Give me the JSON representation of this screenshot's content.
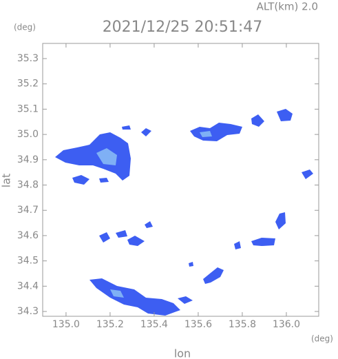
{
  "chart_data": {
    "type": "radar-map",
    "title": "2021/12/25 20:51:47",
    "altitude_label": "ALT(km) 2.0",
    "y_unit": "(deg)",
    "x_unit": "(deg)",
    "xlabel": "lon",
    "ylabel": "lat",
    "xlim": [
      134.894,
      136.147
    ],
    "ylim": [
      34.281,
      35.36
    ],
    "xticks": [
      {
        "value": 135.0,
        "label": "135.0"
      },
      135.2,
      135.4,
      135.6,
      135.8,
      {
        "value": 136.0,
        "label": "136.0"
      }
    ],
    "yticks": [
      34.3,
      34.4,
      34.5,
      34.6,
      34.7,
      34.8,
      34.9,
      {
        "value": 35.0,
        "label": "35.0"
      },
      35.1,
      35.2,
      35.3
    ]
  }
}
